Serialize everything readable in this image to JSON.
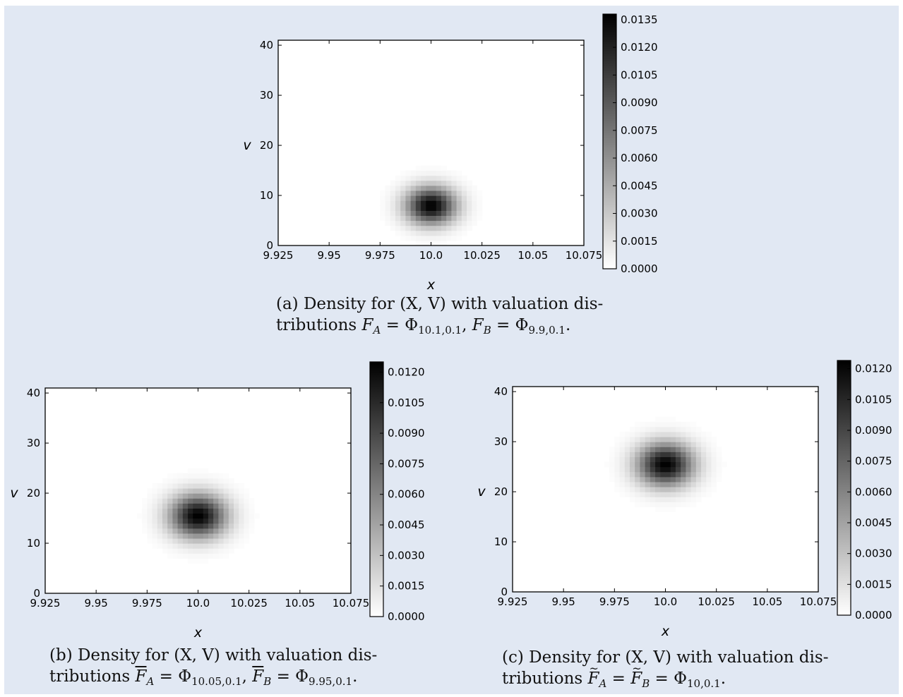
{
  "colors": {
    "background": "#e1e8f3",
    "cmap_low": "#ffffff",
    "cmap_high": "#000000"
  },
  "chart_data": [
    {
      "id": "a",
      "type": "heatmap",
      "xlabel": "x",
      "ylabel": "v",
      "xlim": [
        9.925,
        10.075
      ],
      "ylim": [
        0,
        41
      ],
      "xticks": [
        "9.925",
        "9.95",
        "9.975",
        "10.0",
        "10.025",
        "10.05",
        "10.075"
      ],
      "yticks": [
        "0",
        "10",
        "20",
        "30",
        "40"
      ],
      "peak": {
        "x": 10.0,
        "v": 8.0,
        "sigma_x": 0.0085,
        "sigma_v": 2.6
      },
      "colorbar": {
        "min": 0.0,
        "max": 0.0138,
        "ticks": [
          "0.0000",
          "0.0015",
          "0.0030",
          "0.0045",
          "0.0060",
          "0.0075",
          "0.0090",
          "0.0105",
          "0.0120",
          "0.0135"
        ]
      },
      "caption_label": "(a)",
      "caption_line1": "Density for (X, V) with valuation dis-",
      "caption_line2_prefix": "tributions ",
      "caption_line2_suffix": "."
    },
    {
      "id": "b",
      "type": "heatmap",
      "xlabel": "x",
      "ylabel": "v",
      "xlim": [
        9.925,
        10.075
      ],
      "ylim": [
        0,
        41
      ],
      "xticks": [
        "9.925",
        "9.95",
        "9.975",
        "10.0",
        "10.025",
        "10.05",
        "10.075"
      ],
      "yticks": [
        "0",
        "10",
        "20",
        "30",
        "40"
      ],
      "peak": {
        "x": 10.0,
        "v": 15.5,
        "sigma_x": 0.0095,
        "sigma_v": 3.0
      },
      "colorbar": {
        "min": 0.0,
        "max": 0.0125,
        "ticks": [
          "0.0000",
          "0.0015",
          "0.0030",
          "0.0045",
          "0.0060",
          "0.0075",
          "0.0090",
          "0.0105",
          "0.0120"
        ]
      },
      "caption_label": "(b)",
      "caption_line1": "Density for (X, V) with valuation dis-",
      "caption_line2_prefix": "tributions ",
      "caption_line2_suffix": "."
    },
    {
      "id": "c",
      "type": "heatmap",
      "xlabel": "x",
      "ylabel": "v",
      "xlim": [
        9.925,
        10.075
      ],
      "ylim": [
        0,
        41
      ],
      "xticks": [
        "9.925",
        "9.95",
        "9.975",
        "10.0",
        "10.025",
        "10.05",
        "10.075"
      ],
      "yticks": [
        "0",
        "10",
        "20",
        "30",
        "40"
      ],
      "peak": {
        "x": 10.0,
        "v": 25.5,
        "sigma_x": 0.0095,
        "sigma_v": 3.0
      },
      "colorbar": {
        "min": 0.0,
        "max": 0.0124,
        "ticks": [
          "0.0000",
          "0.0015",
          "0.0030",
          "0.0045",
          "0.0060",
          "0.0075",
          "0.0090",
          "0.0105",
          "0.0120"
        ]
      },
      "caption_label": "(c)",
      "caption_line1": "Density for (X, V) with valuation dis-",
      "caption_line2_prefix": "tributions ",
      "caption_line2_suffix": "."
    }
  ],
  "captions": {
    "a": {
      "f_a": "F",
      "sub_a": "A",
      "phi_a": "10.1,0.1",
      "f_b": "F",
      "sub_b": "B",
      "phi_b": "9.9,0.1"
    },
    "b": {
      "f_a": "F",
      "sub_a": "A",
      "phi_a": "10.05,0.1",
      "f_b": "F",
      "sub_b": "B",
      "phi_b": "9.95,0.1"
    },
    "c": {
      "f_a": "F",
      "sub_a": "A",
      "f_b": "F",
      "sub_b": "B",
      "phi": "10,0.1"
    }
  }
}
